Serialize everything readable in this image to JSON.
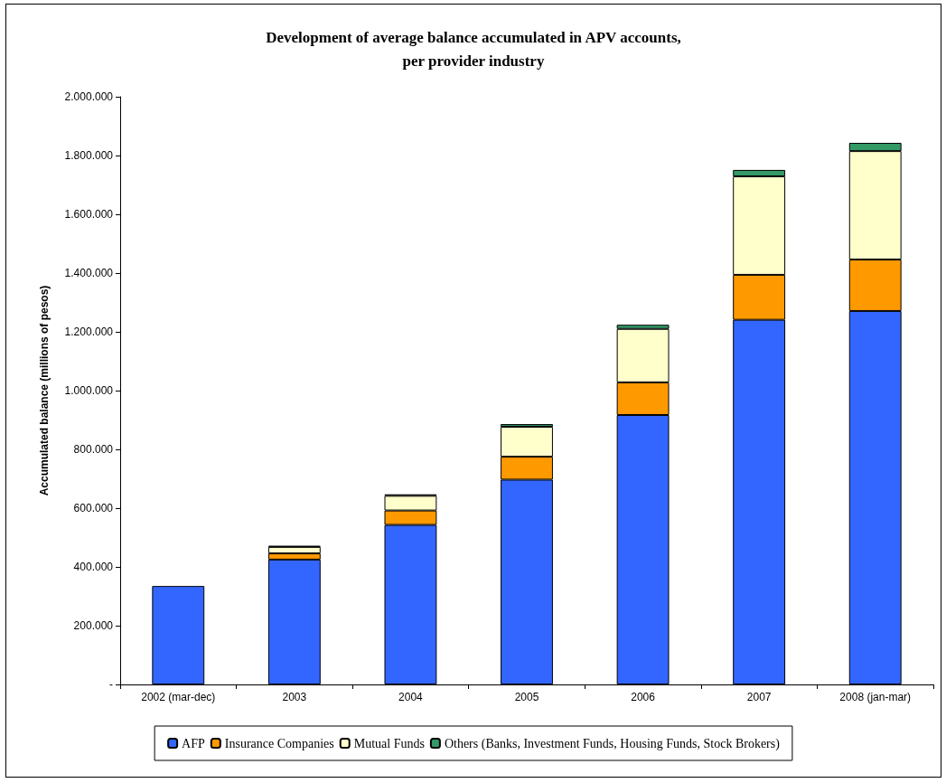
{
  "chart_data": {
    "type": "bar",
    "title": "Development of average balance accumulated in APV accounts,\nper provider industry",
    "ylabel": "Accumulated balance (millions of pesos)",
    "categories": [
      "2002 (mar-dec)",
      "2003",
      "2004",
      "2005",
      "2006",
      "2007",
      "2008 (jan-mar)"
    ],
    "stacked": true,
    "series": [
      {
        "name": "AFP",
        "color": "#3366ff",
        "values": [
          335000,
          425000,
          543000,
          697000,
          917000,
          1241000,
          1271000
        ]
      },
      {
        "name": "Insurance Companies",
        "color": "#ff9900",
        "values": [
          null,
          21000,
          49000,
          78000,
          111000,
          153000,
          175000
        ]
      },
      {
        "name": "Mutual Funds",
        "color": "#ffffcc",
        "values": [
          null,
          22000,
          50000,
          102000,
          182000,
          335000,
          369000
        ]
      },
      {
        "name": "Others (Banks, Investment Funds, Housing Funds, Stock Brokers)",
        "color": "#339966",
        "values": [
          null,
          4000,
          5000,
          9000,
          14000,
          22000,
          28000
        ]
      }
    ],
    "ylim": [
      0,
      2000000
    ],
    "yticks": [
      {
        "value": 0,
        "label": "-"
      },
      {
        "value": 200000,
        "label": "200.000"
      },
      {
        "value": 400000,
        "label": "400.000"
      },
      {
        "value": 600000,
        "label": "600.000"
      },
      {
        "value": 800000,
        "label": "800.000"
      },
      {
        "value": 1000000,
        "label": "1.000.000"
      },
      {
        "value": 1200000,
        "label": "1.200.000"
      },
      {
        "value": 1400000,
        "label": "1.400.000"
      },
      {
        "value": 1600000,
        "label": "1.600.000"
      },
      {
        "value": 1800000,
        "label": "1.800.000"
      },
      {
        "value": 2000000,
        "label": "2.000.000"
      }
    ],
    "grid": false,
    "legend": "bottom"
  }
}
